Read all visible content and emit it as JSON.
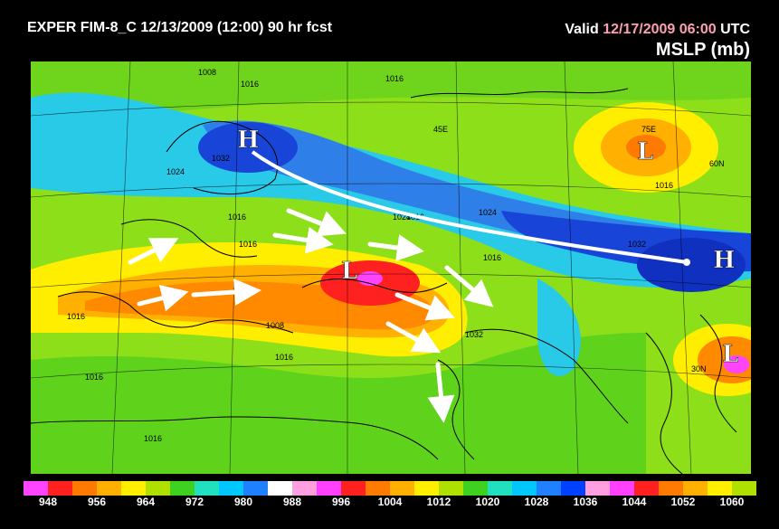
{
  "header": {
    "title": "EXPER FIM-8_C 12/13/2009 (12:00) 90 hr fcst",
    "valid_prefix": "Valid",
    "valid_datetime": "12/17/2009 06:00",
    "valid_suffix": "UTC",
    "field": "MSLP (mb)"
  },
  "map": {
    "contour_labels": [
      "1008",
      "1016",
      "1016",
      "1016",
      "1024",
      "1032",
      "1016",
      "1016",
      "1008",
      "1016",
      "1024",
      "1016",
      "1032",
      "1024",
      "1016",
      "1016",
      "1016",
      "1032",
      "1016"
    ],
    "grid_labels": [
      "75E",
      "45E",
      "60N",
      "30N"
    ],
    "highs": [
      "H",
      "H"
    ],
    "lows": [
      "L",
      "L",
      "L"
    ]
  },
  "legend": {
    "labels": [
      "948",
      "956",
      "964",
      "972",
      "980",
      "988",
      "996",
      "1004",
      "1012",
      "1020",
      "1028",
      "1036",
      "1044",
      "1052",
      "1060"
    ],
    "colors": [
      "#ff44ff",
      "#ff2020",
      "#ff7a00",
      "#ffb000",
      "#ffee00",
      "#b0e000",
      "#40d020",
      "#20e0c0",
      "#00c8ff",
      "#2080ff",
      "#ffffff",
      "#ff9fe0",
      "#ff40ff",
      "#ff2020",
      "#ff7a00",
      "#ffb000",
      "#ffee00",
      "#b0e000",
      "#40d020",
      "#20e0c0",
      "#00c8ff",
      "#2080ff",
      "#0040ff",
      "#ff9fe0",
      "#ff40ff",
      "#ff2020",
      "#ff7a00",
      "#ffb000",
      "#ffee00",
      "#b0e000"
    ]
  }
}
